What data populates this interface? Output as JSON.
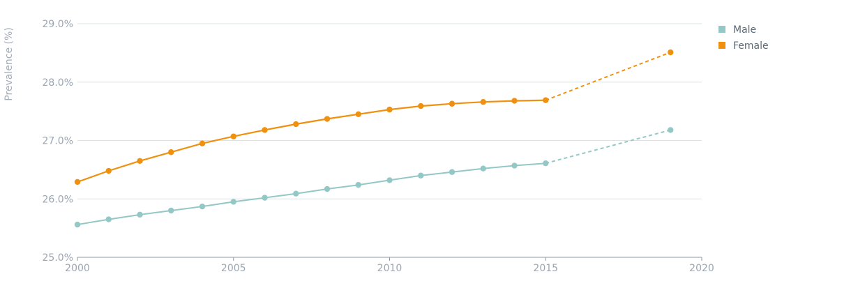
{
  "chart_data": {
    "type": "line",
    "title": "",
    "xlabel": "",
    "ylabel": "Prevalence (%)",
    "xlim": [
      2000,
      2020
    ],
    "ylim": [
      25.0,
      29.0
    ],
    "x_ticks": [
      {
        "value": 2000,
        "label": "2000"
      },
      {
        "value": 2005,
        "label": "2005"
      },
      {
        "value": 2010,
        "label": "2010"
      },
      {
        "value": 2015,
        "label": "2015"
      },
      {
        "value": 2020,
        "label": "2020"
      }
    ],
    "y_ticks": [
      {
        "value": 25.0,
        "label": "25.0%"
      },
      {
        "value": 26.0,
        "label": "26.0%"
      },
      {
        "value": 27.0,
        "label": "27.0%"
      },
      {
        "value": 28.0,
        "label": "28.0%"
      },
      {
        "value": 29.0,
        "label": "29.0%"
      }
    ],
    "grid": true,
    "legend_position": "top-right",
    "series": [
      {
        "name": "Male",
        "color": "#93c8c6",
        "x": [
          2000,
          2001,
          2002,
          2003,
          2004,
          2005,
          2006,
          2007,
          2008,
          2009,
          2010,
          2011,
          2012,
          2013,
          2014,
          2015
        ],
        "values": [
          25.56,
          25.65,
          25.73,
          25.8,
          25.87,
          25.95,
          26.02,
          26.09,
          26.17,
          26.24,
          26.32,
          26.4,
          26.46,
          26.52,
          26.57,
          26.61
        ],
        "projection": {
          "x": [
            2015,
            2019
          ],
          "values": [
            26.61,
            27.18
          ]
        }
      },
      {
        "name": "Female",
        "color": "#f0900f",
        "x": [
          2000,
          2001,
          2002,
          2003,
          2004,
          2005,
          2006,
          2007,
          2008,
          2009,
          2010,
          2011,
          2012,
          2013,
          2014,
          2015
        ],
        "values": [
          26.29,
          26.48,
          26.65,
          26.8,
          26.95,
          27.07,
          27.18,
          27.28,
          27.37,
          27.45,
          27.53,
          27.59,
          27.63,
          27.66,
          27.68,
          27.69
        ],
        "projection": {
          "x": [
            2015,
            2019
          ],
          "values": [
            27.69,
            28.51
          ]
        }
      }
    ]
  }
}
